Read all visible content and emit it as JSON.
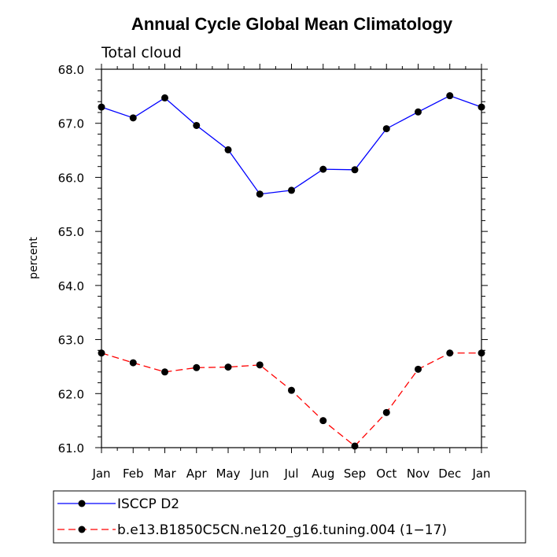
{
  "chart_data": {
    "type": "line",
    "title": "Annual Cycle Global Mean Climatology",
    "subtitle": "Total cloud",
    "xlabel": "",
    "ylabel": "percent",
    "categories": [
      "Jan",
      "Feb",
      "Mar",
      "Apr",
      "May",
      "Jun",
      "Jul",
      "Aug",
      "Sep",
      "Oct",
      "Nov",
      "Dec",
      "Jan"
    ],
    "ylim": [
      61.0,
      68.0
    ],
    "yticks": [
      61.0,
      62.0,
      63.0,
      64.0,
      65.0,
      66.0,
      67.0,
      68.0
    ],
    "ytick_labels": [
      "61.0",
      "62.0",
      "63.0",
      "64.0",
      "65.0",
      "66.0",
      "67.0",
      "68.0"
    ],
    "grid": false,
    "legend_position": "bottom",
    "series": [
      {
        "name": "ISCCP D2",
        "color": "#0000ff",
        "dash": "solid",
        "values": [
          67.3,
          67.1,
          67.47,
          66.96,
          66.51,
          65.69,
          65.76,
          66.15,
          66.14,
          66.9,
          67.21,
          67.51,
          67.3
        ]
      },
      {
        "name": "b.e13.B1850C5CN.ne120_g16.tuning.004 (1−17)",
        "color": "#ff0000",
        "dash": "dashed",
        "values": [
          62.75,
          62.57,
          62.4,
          62.48,
          62.49,
          62.53,
          62.06,
          61.5,
          61.03,
          61.65,
          62.45,
          62.75,
          62.75
        ]
      }
    ]
  }
}
